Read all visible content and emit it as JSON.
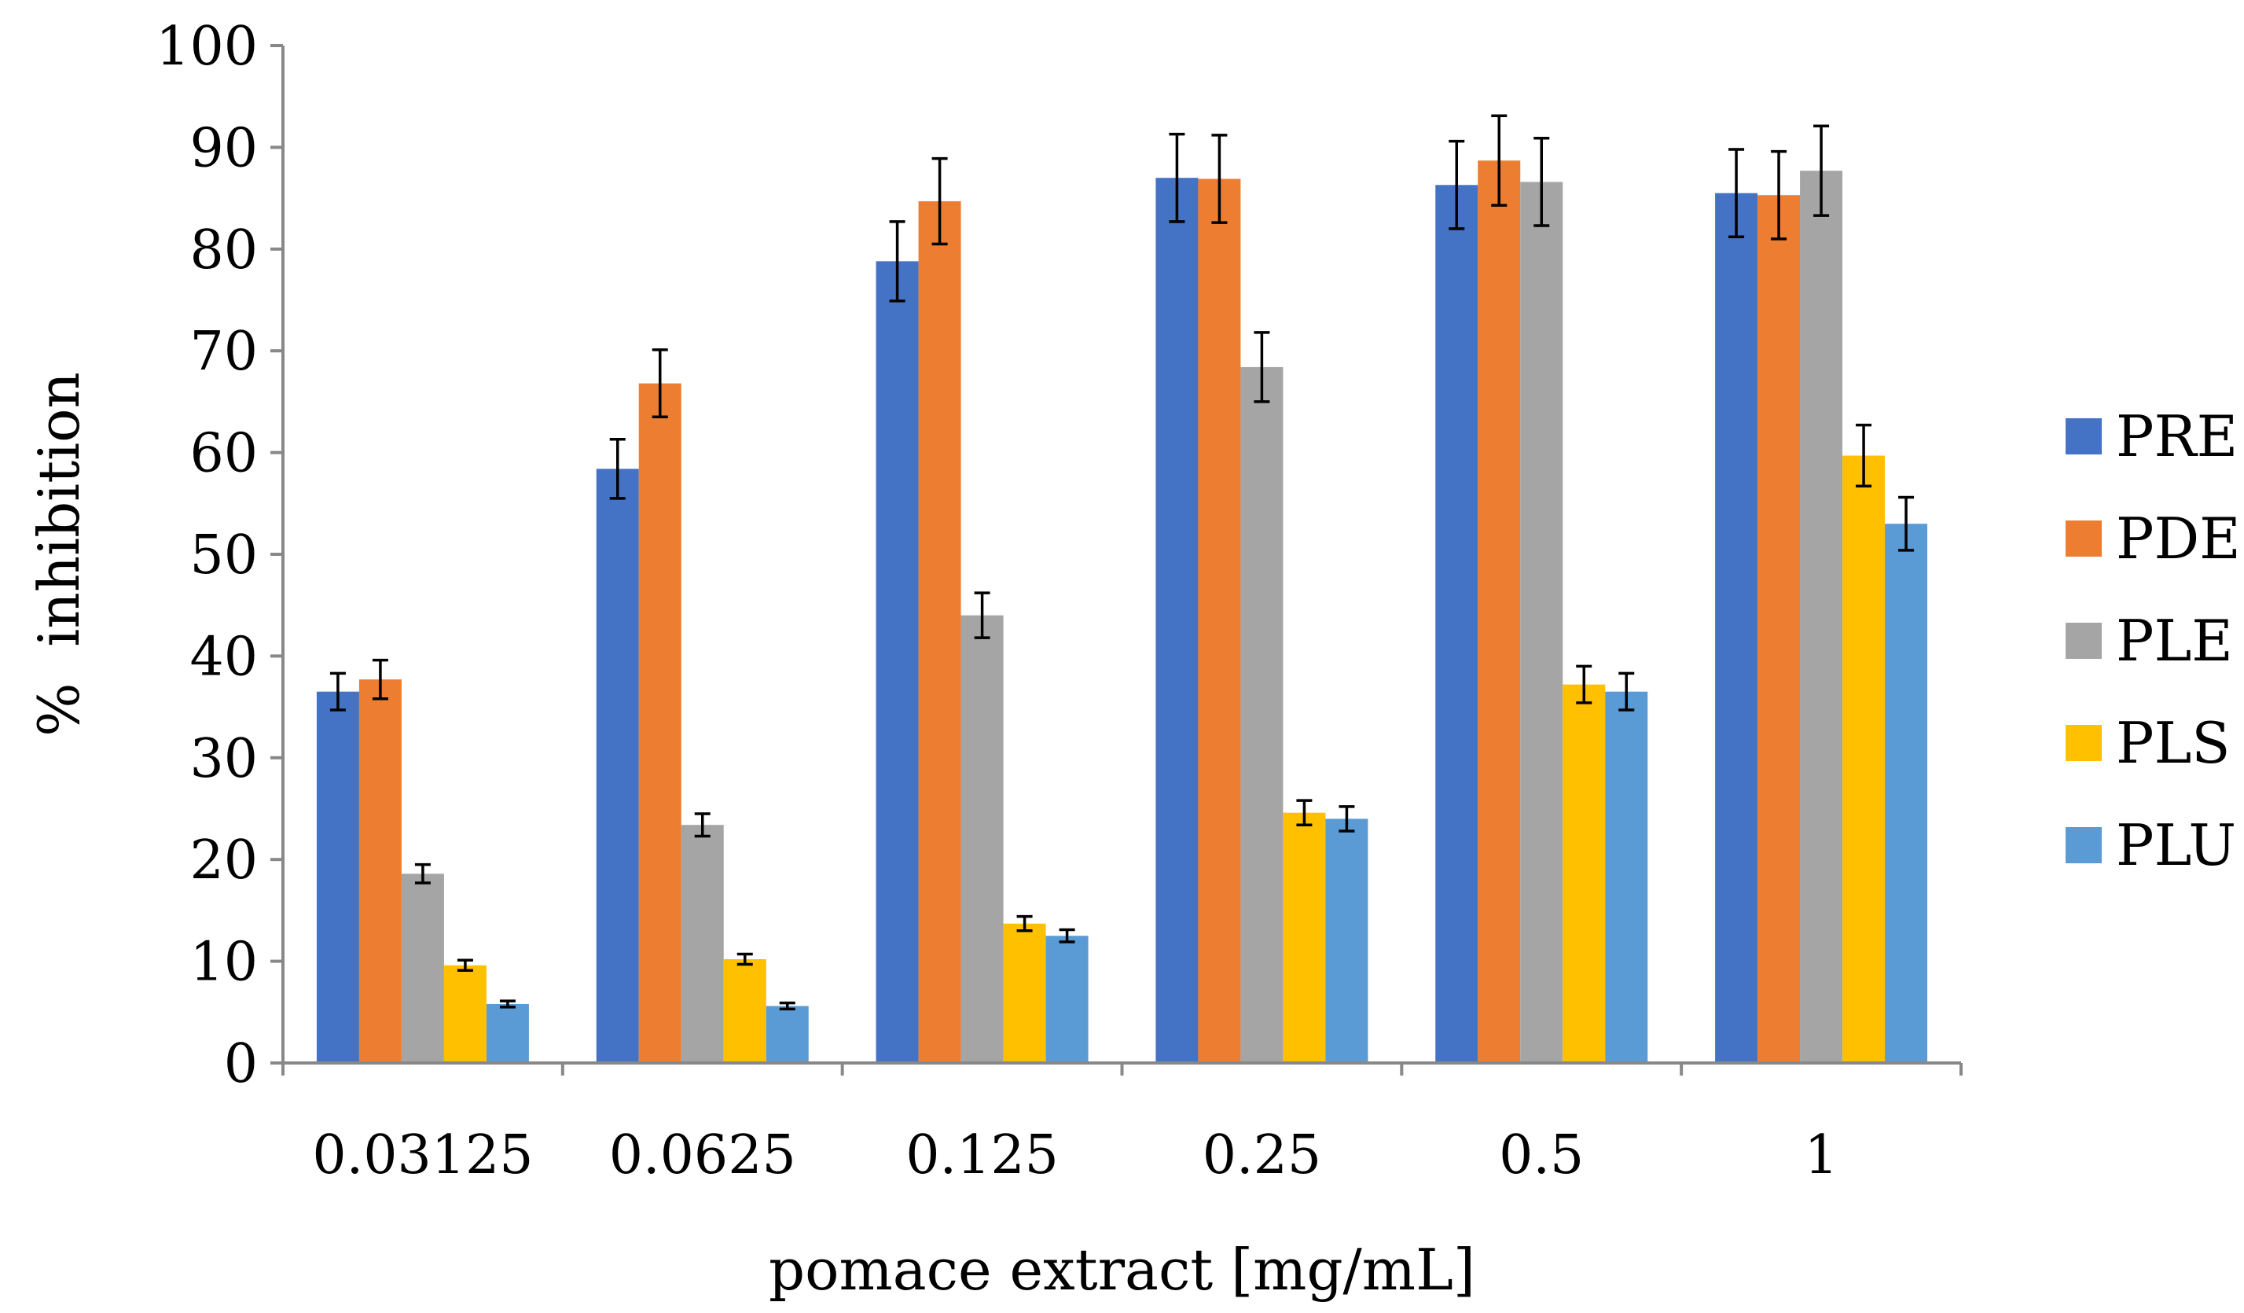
{
  "chart_data": {
    "type": "bar",
    "title": "",
    "xlabel": "pomace extract [mg/mL]",
    "ylabel": "%  inhibition",
    "ylim": [
      0,
      100
    ],
    "yticks": [
      "0",
      "10",
      "20",
      "30",
      "40",
      "50",
      "60",
      "70",
      "80",
      "90",
      "100"
    ],
    "categories": [
      "0.03125",
      "0.0625",
      "0.125",
      "0.25",
      "0.5",
      "1"
    ],
    "legend_position": "right",
    "grid": false,
    "series": [
      {
        "name": "PRE",
        "color": "#4472C4",
        "values": [
          36.5,
          58.4,
          78.8,
          87.0,
          86.3,
          85.5
        ],
        "errors": [
          1.8,
          2.9,
          3.9,
          4.3,
          4.3,
          4.3
        ]
      },
      {
        "name": "PDE",
        "color": "#ED7D31",
        "values": [
          37.7,
          66.8,
          84.7,
          86.9,
          88.7,
          85.3
        ],
        "errors": [
          1.9,
          3.3,
          4.2,
          4.3,
          4.4,
          4.3
        ]
      },
      {
        "name": "PLE",
        "color": "#A5A5A5",
        "values": [
          18.6,
          23.4,
          44.0,
          68.4,
          86.6,
          87.7
        ],
        "errors": [
          0.9,
          1.1,
          2.2,
          3.4,
          4.3,
          4.4
        ]
      },
      {
        "name": "PLS",
        "color": "#FFC000",
        "values": [
          9.6,
          10.2,
          13.7,
          24.6,
          37.2,
          59.7
        ],
        "errors": [
          0.5,
          0.5,
          0.7,
          1.2,
          1.8,
          3.0
        ]
      },
      {
        "name": "PLU",
        "color": "#5B9BD5",
        "values": [
          5.8,
          5.6,
          12.5,
          24.0,
          36.5,
          53.0
        ],
        "errors": [
          0.3,
          0.3,
          0.6,
          1.2,
          1.8,
          2.6
        ]
      }
    ]
  }
}
